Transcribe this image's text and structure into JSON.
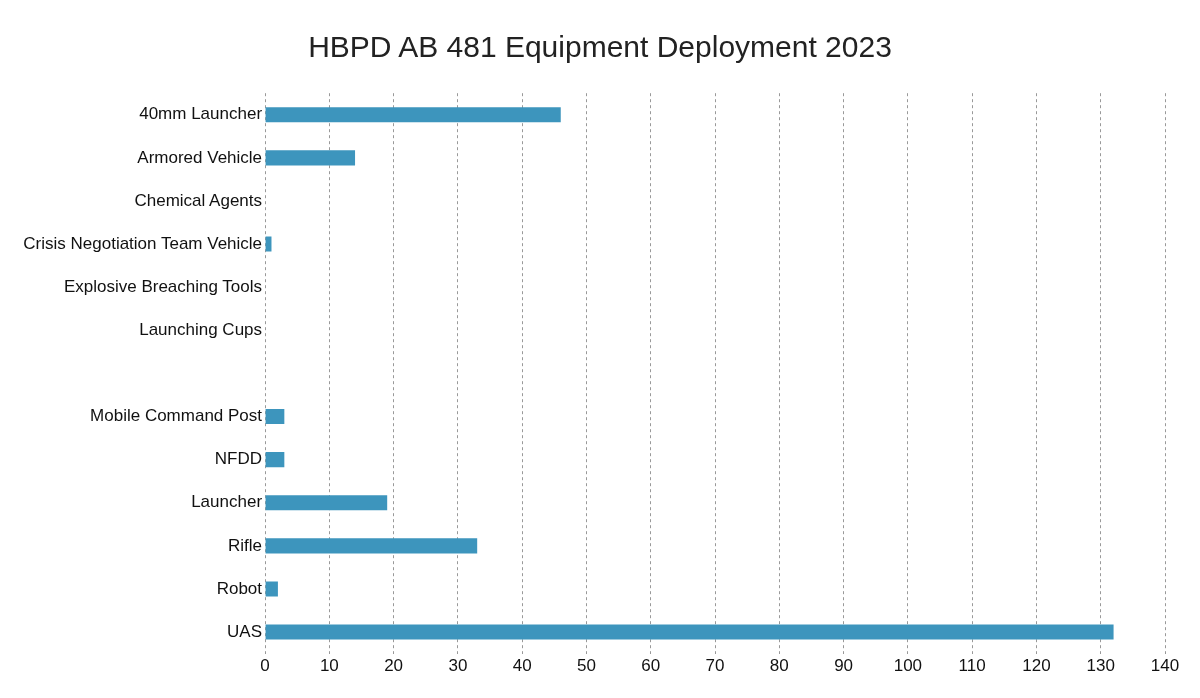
{
  "chart_data": {
    "type": "bar",
    "orientation": "horizontal",
    "title": "HBPD AB 481 Equipment Deployment 2023",
    "categories": [
      "40mm Launcher",
      "Armored Vehicle",
      "Chemical Agents",
      "Crisis Negotiation Team Vehicle",
      "Explosive Breaching Tools",
      "Launching Cups",
      null,
      "Mobile Command Post",
      "NFDD",
      "Launcher",
      "Rifle",
      "Robot",
      "UAS"
    ],
    "values": [
      46,
      14,
      0,
      1,
      0,
      0,
      0,
      3,
      3,
      19,
      33,
      2,
      132
    ],
    "color": "#3d95bd",
    "xlim": [
      0,
      140
    ],
    "xticks": [
      0,
      10,
      20,
      30,
      40,
      50,
      60,
      70,
      80,
      90,
      100,
      110,
      120,
      130,
      140
    ],
    "grid": "x",
    "legend": false
  }
}
